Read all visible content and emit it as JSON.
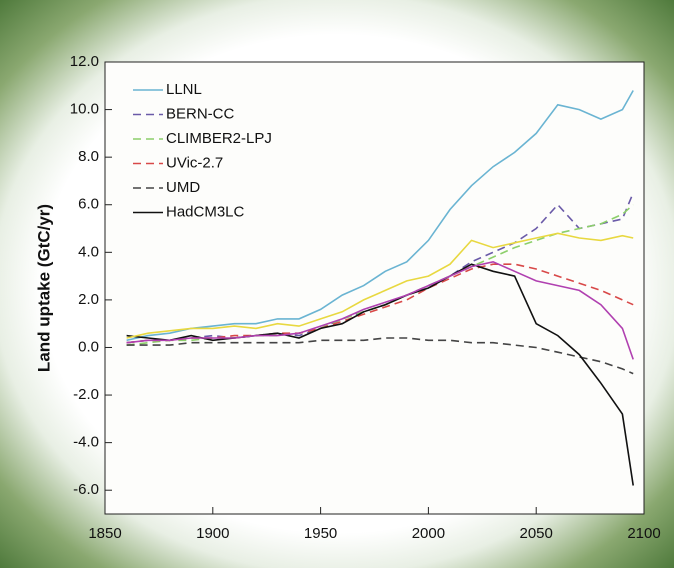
{
  "chart_data": {
    "type": "line",
    "y_label": "Land uptake (GtC/yr)",
    "x": [
      1860,
      1870,
      1880,
      1890,
      1900,
      1910,
      1920,
      1930,
      1940,
      1950,
      1960,
      1970,
      1980,
      1990,
      2000,
      2010,
      2020,
      2030,
      2040,
      2050,
      2060,
      2070,
      2080,
      2090,
      2095
    ],
    "series": [
      {
        "name": "LLNL",
        "color": "#6ab4d2",
        "dashed": false,
        "values": [
          0.3,
          0.5,
          0.6,
          0.8,
          0.9,
          1.0,
          1.0,
          1.2,
          1.2,
          1.6,
          2.2,
          2.6,
          3.2,
          3.6,
          4.5,
          5.8,
          6.8,
          7.6,
          8.2,
          9.0,
          10.2,
          10.0,
          9.6,
          10.0,
          10.8
        ]
      },
      {
        "name": "BERN-CC",
        "color": "#6a5aa8",
        "dashed": true,
        "values": [
          0.2,
          0.3,
          0.3,
          0.4,
          0.5,
          0.4,
          0.5,
          0.6,
          0.5,
          0.8,
          1.2,
          1.5,
          1.8,
          2.2,
          2.6,
          3.0,
          3.6,
          4.0,
          4.4,
          5.0,
          6.0,
          5.0,
          5.2,
          5.4,
          6.5
        ]
      },
      {
        "name": "CLIMBER2-LPJ",
        "color": "#8ccf6a",
        "dashed": true,
        "values": [
          0.1,
          0.2,
          0.3,
          0.3,
          0.4,
          0.4,
          0.5,
          0.5,
          0.6,
          0.8,
          1.2,
          1.5,
          1.8,
          2.2,
          2.6,
          3.0,
          3.4,
          3.8,
          4.2,
          4.5,
          4.8,
          5.0,
          5.2,
          5.6,
          6.0
        ]
      },
      {
        "name": "UVic-2.7",
        "color": "#d84848",
        "dashed": true,
        "values": [
          0.2,
          0.3,
          0.3,
          0.4,
          0.4,
          0.5,
          0.5,
          0.6,
          0.6,
          0.8,
          1.1,
          1.4,
          1.7,
          2.0,
          2.5,
          2.9,
          3.3,
          3.5,
          3.5,
          3.3,
          3.0,
          2.7,
          2.4,
          2.0,
          1.8
        ]
      },
      {
        "name": "UMD",
        "color": "#444444",
        "dashed": true,
        "values": [
          0.1,
          0.1,
          0.1,
          0.2,
          0.2,
          0.2,
          0.2,
          0.2,
          0.2,
          0.3,
          0.3,
          0.3,
          0.4,
          0.4,
          0.3,
          0.3,
          0.2,
          0.2,
          0.1,
          0.0,
          -0.2,
          -0.4,
          -0.6,
          -0.9,
          -1.1
        ]
      },
      {
        "name": "HadCM3LC",
        "color": "#111111",
        "dashed": false,
        "values": [
          0.5,
          0.4,
          0.3,
          0.5,
          0.3,
          0.4,
          0.5,
          0.6,
          0.4,
          0.8,
          1.0,
          1.5,
          1.8,
          2.2,
          2.5,
          3.0,
          3.5,
          3.2,
          3.0,
          1.0,
          0.5,
          -0.3,
          -1.5,
          -2.8,
          -5.8
        ]
      },
      {
        "color": "#e8d840",
        "dashed": false,
        "values": [
          0.4,
          0.6,
          0.7,
          0.8,
          0.8,
          0.9,
          0.8,
          1.0,
          0.9,
          1.2,
          1.5,
          2.0,
          2.4,
          2.8,
          3.0,
          3.5,
          4.5,
          4.2,
          4.4,
          4.6,
          4.8,
          4.6,
          4.5,
          4.7,
          4.6
        ]
      },
      {
        "color": "#b040b0",
        "dashed": false,
        "values": [
          0.2,
          0.3,
          0.3,
          0.4,
          0.4,
          0.4,
          0.5,
          0.5,
          0.6,
          0.9,
          1.2,
          1.6,
          1.9,
          2.2,
          2.6,
          3.0,
          3.4,
          3.6,
          3.2,
          2.8,
          2.6,
          2.4,
          1.8,
          0.8,
          -0.5
        ]
      }
    ],
    "xlim": [
      1850,
      2100
    ],
    "xticks": [
      1850,
      1900,
      1950,
      2000,
      2050,
      2100
    ],
    "ylim": [
      -7,
      12
    ],
    "yticks": [
      {
        "value": -6,
        "label": "-6.0"
      },
      {
        "value": -4,
        "label": "-4.0"
      },
      {
        "value": -2,
        "label": "-2.0"
      },
      {
        "value": 0,
        "label": "0.0"
      },
      {
        "value": 2,
        "label": "2.0"
      },
      {
        "value": 4,
        "label": "4.0"
      },
      {
        "value": 6,
        "label": "6.0"
      },
      {
        "value": 8,
        "label": "8.0"
      },
      {
        "value": 10,
        "label": "10.0"
      },
      {
        "value": 12,
        "label": "12.0"
      }
    ],
    "grid": false,
    "legend": "upper left"
  }
}
